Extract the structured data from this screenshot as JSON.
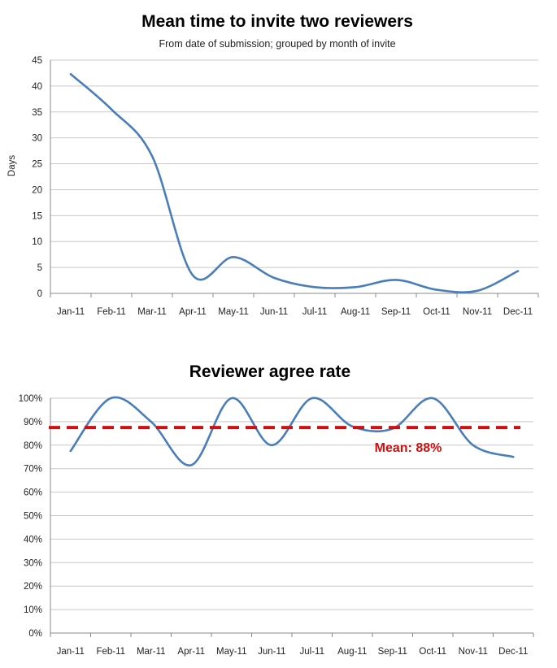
{
  "chart_data": [
    {
      "type": "line",
      "title": "Mean time to invite two reviewers",
      "subtitle": "From date of submission; grouped by month of invite",
      "xlabel": "",
      "ylabel": "Days",
      "categories": [
        "Jan-11",
        "Feb-11",
        "Mar-11",
        "Apr-11",
        "May-11",
        "Jun-11",
        "Jul-11",
        "Aug-11",
        "Sep-11",
        "Oct-11",
        "Nov-11",
        "Dec-11"
      ],
      "series": [
        {
          "values": [
            42.3,
            35.5,
            26.5,
            3.5,
            7,
            3,
            1.2,
            1.2,
            2.6,
            0.7,
            0.5,
            4.3
          ],
          "color": "#4a7ebb"
        }
      ],
      "ylim": [
        0,
        45
      ],
      "yticks": [
        0,
        5,
        10,
        15,
        20,
        25,
        30,
        35,
        40,
        45
      ],
      "ytick_labels": [
        "0",
        "5",
        "10",
        "15",
        "20",
        "25",
        "30",
        "35",
        "40",
        "45"
      ],
      "grid": true,
      "smooth": true
    },
    {
      "type": "line",
      "title": "Reviewer agree rate",
      "xlabel": "",
      "ylabel": "",
      "categories": [
        "Jan-11",
        "Feb-11",
        "Mar-11",
        "Apr-11",
        "May-11",
        "Jun-11",
        "Jul-11",
        "Aug-11",
        "Sep-11",
        "Oct-11",
        "Nov-11",
        "Dec-11"
      ],
      "series": [
        {
          "values": [
            77.5,
            100,
            90,
            71.5,
            100,
            80,
            100,
            88,
            87,
            100,
            80,
            75
          ],
          "color": "#4a7ebb"
        }
      ],
      "ylim": [
        0,
        100
      ],
      "yticks": [
        0,
        10,
        20,
        30,
        40,
        50,
        60,
        70,
        80,
        90,
        100
      ],
      "ytick_labels": [
        "0%",
        "10%",
        "20%",
        "30%",
        "40%",
        "50%",
        "60%",
        "70%",
        "80%",
        "90%",
        "100%"
      ],
      "grid": true,
      "smooth": true,
      "mean_line": {
        "value": 87.5,
        "label": "Mean: 88%",
        "color": "#d01010"
      }
    }
  ]
}
